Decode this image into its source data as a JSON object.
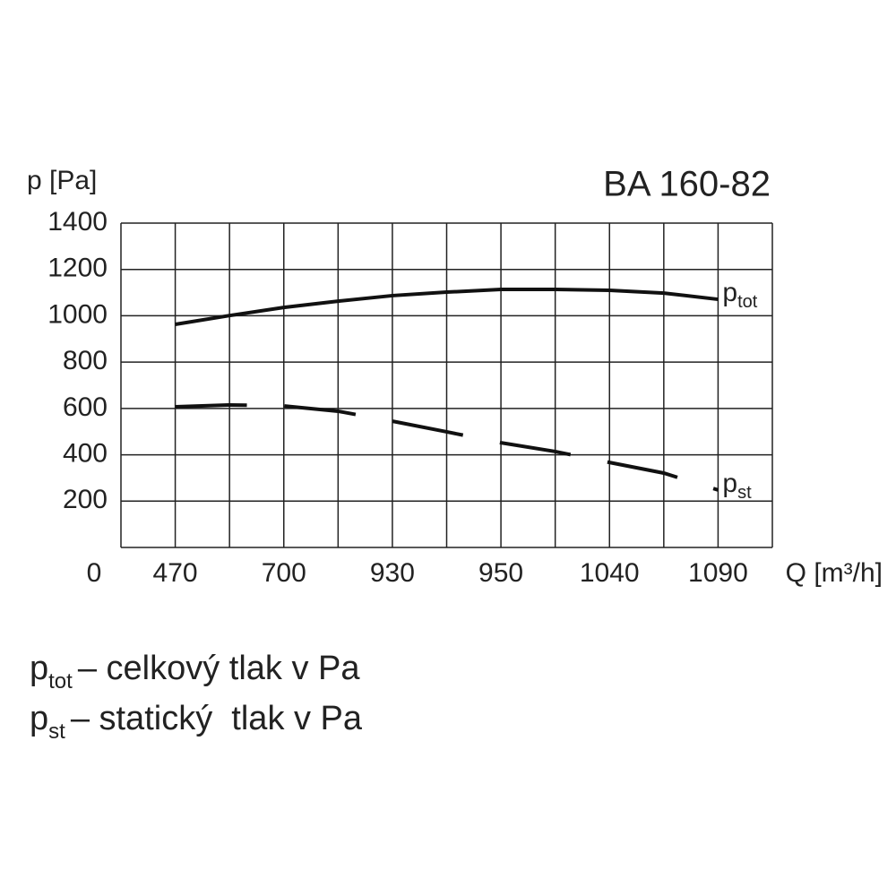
{
  "chart_data": {
    "type": "line",
    "title": "BA 160-82",
    "y_label": "p [Pa]",
    "x_label": "Q [m³/h]",
    "origin_label": "0",
    "xlim": [
      0,
      12
    ],
    "xgrid": [
      0,
      1,
      2,
      3,
      4,
      5,
      6,
      7,
      8,
      9,
      10,
      11,
      12
    ],
    "xticks": [
      {
        "value": 1,
        "label": "470"
      },
      {
        "value": 3,
        "label": "700"
      },
      {
        "value": 5,
        "label": "930"
      },
      {
        "value": 7,
        "label": "950"
      },
      {
        "value": 9,
        "label": "1040"
      },
      {
        "value": 11,
        "label": "1090"
      }
    ],
    "ylim": [
      0,
      1400
    ],
    "yticks": [
      200,
      400,
      600,
      800,
      1000,
      1200,
      1400
    ],
    "grid": true,
    "x": [
      1,
      2,
      3,
      4,
      5,
      6,
      7,
      8,
      9,
      10,
      11
    ],
    "series": [
      {
        "name": "p",
        "sub": "tot",
        "color": "#111111",
        "dashed": false,
        "values": [
          963,
          1001,
          1036,
          1063,
          1087,
          1102,
          1114,
          1114,
          1110,
          1098,
          1071
        ]
      },
      {
        "name": "p",
        "sub": "st",
        "color": "#111111",
        "dashed": true,
        "values": [
          607,
          615,
          611,
          588,
          545,
          499,
          452,
          414,
          367,
          321,
          248
        ]
      }
    ],
    "legend": [
      {
        "symbol": "p",
        "sub": "tot",
        "text": "– celkový tlak v Pa"
      },
      {
        "symbol": "p",
        "sub": "st",
        "text": "– statický  tlak v Pa"
      }
    ]
  }
}
